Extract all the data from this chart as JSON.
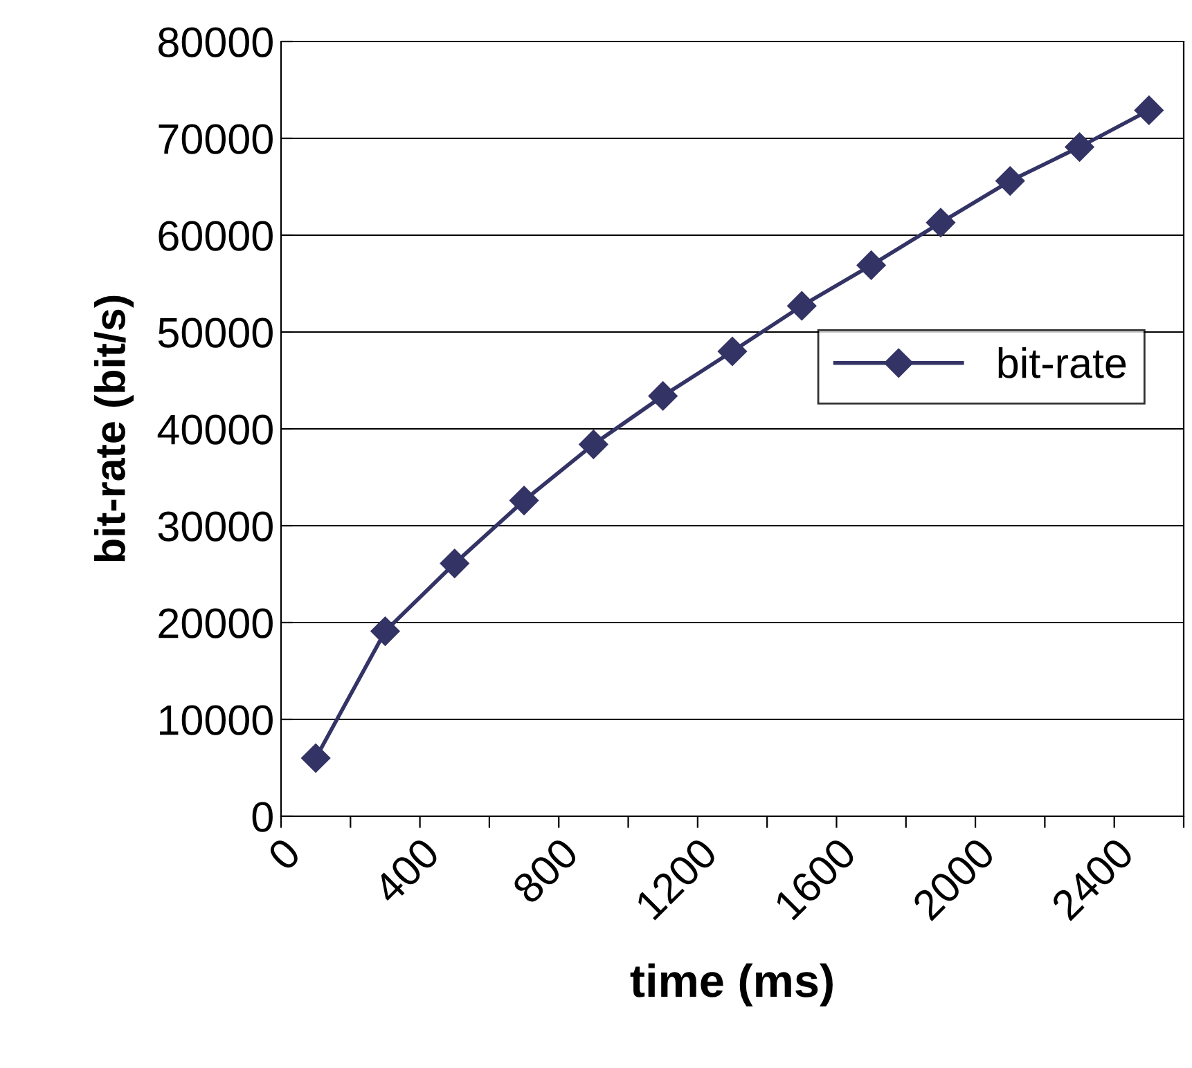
{
  "chart_data": {
    "type": "line",
    "xlabel": "time (ms)",
    "ylabel": "bit-rate (bit/s)",
    "x": [
      100,
      300,
      500,
      700,
      900,
      1100,
      1300,
      1500,
      1700,
      1900,
      2100,
      2300,
      2500
    ],
    "series": [
      {
        "name": "bit-rate",
        "color": "#333366",
        "values": [
          6000,
          19100,
          26100,
          32600,
          38400,
          43400,
          48000,
          52700,
          56900,
          61300,
          65600,
          69100,
          72900
        ]
      }
    ],
    "xlim": [
      0,
      2600
    ],
    "ylim": [
      0,
      80000
    ],
    "xticks": [
      0,
      {
        "value": 200,
        "label": null
      },
      400,
      {
        "value": 600,
        "label": null
      },
      800,
      {
        "value": 1000,
        "label": null
      },
      1200,
      {
        "value": 1400,
        "label": null
      },
      1600,
      {
        "value": 1800,
        "label": null
      },
      2000,
      {
        "value": 2200,
        "label": null
      },
      2400,
      {
        "value": 2600,
        "label": null
      }
    ],
    "yticks": [
      0,
      10000,
      20000,
      30000,
      40000,
      50000,
      60000,
      70000,
      80000
    ],
    "grid": "y",
    "legend": "right",
    "marker": "diamond",
    "line_style": "solid"
  }
}
